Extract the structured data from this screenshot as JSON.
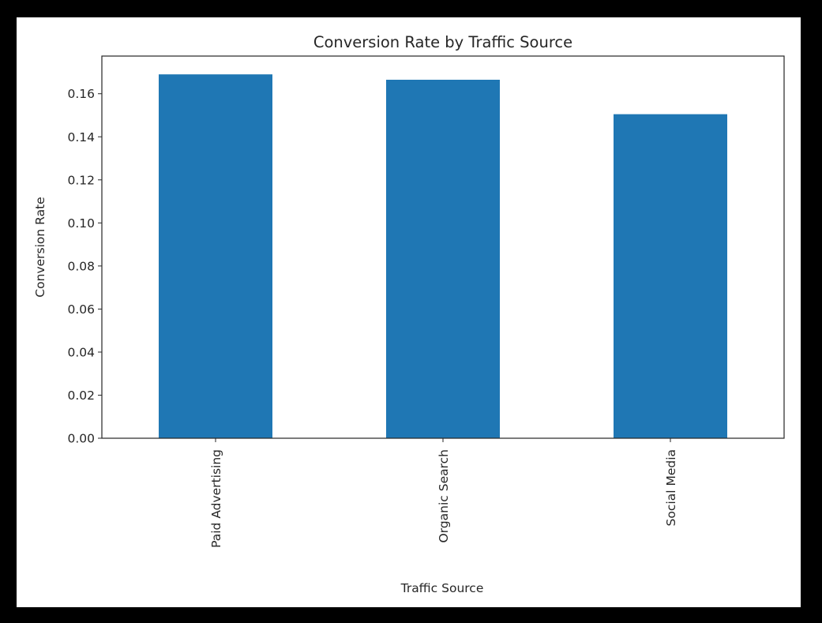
{
  "chart_data": {
    "type": "bar",
    "title": "Conversion Rate by Traffic Source",
    "xlabel": "Traffic Source",
    "ylabel": "Conversion Rate",
    "categories": [
      "Paid Advertising",
      "Organic Search",
      "Social Media"
    ],
    "values": [
      0.169,
      0.1665,
      0.1505
    ],
    "ylim": [
      0,
      0.1775
    ],
    "yticks": [
      0.0,
      0.02,
      0.04,
      0.06,
      0.08,
      0.1,
      0.12,
      0.14,
      0.16
    ],
    "ytick_labels": [
      "0.00",
      "0.02",
      "0.04",
      "0.06",
      "0.08",
      "0.10",
      "0.12",
      "0.14",
      "0.16"
    ],
    "xtick_rotation": 90,
    "grid": false,
    "legend": null,
    "bar_color": "#1f77b4"
  }
}
